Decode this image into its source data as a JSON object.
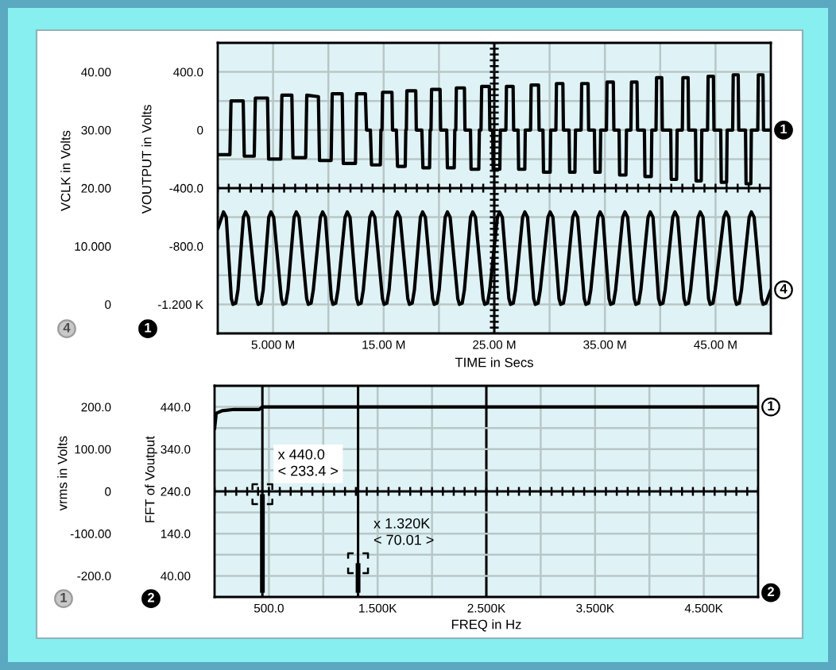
{
  "chart_data": [
    {
      "type": "line",
      "xlabel": "TIME in Secs",
      "ylabel": "VOUTPUT in Volts",
      "y2label": "VCLK in Volts",
      "xlim": [
        0,
        50
      ],
      "xticks": [
        {
          "value": 5,
          "label": "5.000 M"
        },
        {
          "value": 10,
          "label": null
        },
        {
          "value": 15,
          "label": "15.00 M"
        },
        {
          "value": 20,
          "label": null
        },
        {
          "value": 25,
          "label": "25.00 M"
        },
        {
          "value": 30,
          "label": null
        },
        {
          "value": 35,
          "label": "35.00 M"
        },
        {
          "value": 40,
          "label": null
        },
        {
          "value": 45,
          "label": "45.00 M"
        }
      ],
      "ylim": [
        -1400,
        600
      ],
      "yticks": [
        {
          "value": -1200,
          "label": "-1.200 K"
        },
        {
          "value": -1000,
          "label": null
        },
        {
          "value": -800,
          "label": "-800.0"
        },
        {
          "value": -600,
          "label": null
        },
        {
          "value": -400,
          "label": "-400.0"
        },
        {
          "value": -200,
          "label": null
        },
        0,
        {
          "value": 200,
          "label": null
        },
        {
          "value": 400,
          "label": "400.0"
        }
      ],
      "y2lim": [
        -5,
        45
      ],
      "y2ticks": [
        0,
        {
          "value": 10,
          "label": "10.000"
        },
        {
          "value": 20,
          "label": "20.00"
        },
        {
          "value": 30,
          "label": "30.00"
        },
        {
          "value": 40,
          "label": "40.00"
        }
      ],
      "grid": true,
      "series": [
        {
          "name": "1",
          "color": "#000000",
          "axis": "y",
          "x": [
            0,
            1.1,
            1.2,
            2.3,
            2.4,
            3.3,
            3.4,
            4.5,
            4.6,
            5.7,
            5.8,
            6.7,
            6.8,
            7.95,
            8.05,
            9.1,
            9.2,
            10.25,
            10.35,
            11.25,
            11.35,
            12.45,
            12.55,
            13.35,
            13.45,
            13.8,
            13.9,
            14.7,
            14.75,
            14.85,
            14.9,
            15.75,
            15.8,
            16.15,
            16.25,
            16.95,
            17.0,
            17.05,
            17.1,
            17.9,
            17.95,
            18.45,
            18.55,
            19.15,
            19.2,
            19.28,
            19.33,
            20.1,
            20.15,
            20.7,
            20.76,
            21.38,
            21.43,
            21.52,
            21.57,
            22.3,
            22.35,
            22.85,
            22.9,
            23.6,
            23.65,
            23.8,
            23.86,
            24.55,
            24.6,
            24.85,
            24.9,
            25.5,
            25.55,
            26.05,
            26.1,
            26.7,
            26.75,
            27.15,
            27.2,
            27.76,
            27.8,
            28.28,
            28.33,
            29.0,
            29.05,
            29.4,
            29.45,
            30.05,
            30.1,
            30.57,
            30.62,
            31.2,
            31.25,
            31.76,
            31.81,
            32.29,
            32.34,
            32.85,
            32.9,
            33.48,
            33.53,
            34.05,
            34.1,
            34.57,
            34.62,
            35.14,
            35.19,
            35.76,
            35.81,
            36.28,
            36.33,
            36.9,
            36.95,
            37.35,
            37.4,
            37.9,
            37.95,
            38.57,
            38.62,
            39.19,
            39.24,
            39.62,
            39.67,
            40.14,
            40.19,
            40.95,
            41.0,
            41.48,
            41.53,
            42.0,
            42.05,
            42.52,
            42.57,
            43.19,
            43.24,
            43.71,
            43.76,
            44.28,
            44.33,
            44.81,
            44.86,
            45.47,
            45.52,
            46.0,
            46.05,
            46.55,
            46.6,
            47.05,
            47.1,
            47.71,
            47.76,
            48.19,
            48.24,
            48.82,
            48.87,
            49.29,
            49.34,
            50
          ],
          "values": [
            -170,
            -170,
            200,
            200,
            -180,
            -180,
            220,
            220,
            -200,
            -200,
            240,
            240,
            -190,
            -190,
            240,
            230,
            -210,
            -210,
            250,
            250,
            -230,
            -230,
            250,
            250,
            0,
            0,
            -240,
            -240,
            0,
            0,
            260,
            260,
            0,
            0,
            -250,
            -250,
            0,
            0,
            270,
            270,
            0,
            0,
            -260,
            -260,
            0,
            0,
            280,
            280,
            0,
            0,
            -260,
            -260,
            0,
            0,
            290,
            290,
            0,
            0,
            -270,
            -270,
            0,
            0,
            300,
            300,
            0,
            0,
            -270,
            -270,
            0,
            0,
            300,
            300,
            0,
            0,
            -270,
            -270,
            0,
            0,
            310,
            310,
            0,
            0,
            -290,
            -290,
            0,
            0,
            320,
            320,
            0,
            0,
            -290,
            -290,
            0,
            0,
            320,
            320,
            0,
            0,
            -290,
            -290,
            0,
            0,
            330,
            330,
            0,
            0,
            -310,
            -310,
            0,
            0,
            330,
            330,
            0,
            0,
            -320,
            -320,
            0,
            0,
            360,
            360,
            0,
            0,
            -340,
            -340,
            0,
            0,
            360,
            360,
            0,
            0,
            -350,
            -350,
            0,
            0,
            370,
            370,
            0,
            0,
            -360,
            -360,
            0,
            0,
            380,
            380,
            0,
            0,
            -370,
            -370,
            0,
            0,
            380,
            380,
            0,
            0
          ]
        },
        {
          "name": "4",
          "color": "#000000",
          "axis": "y2",
          "x": [
            0,
            0.52,
            0.77,
            1.23,
            1.38,
            1.63,
            1.83,
            2.32,
            2.52,
            2.77,
            3.51,
            3.66,
            3.91,
            4.11,
            4.61,
            4.81,
            5.06,
            5.75,
            5.9,
            6.15,
            6.35,
            6.9,
            7.1,
            7.35,
            8.04,
            8.19,
            8.44,
            8.64,
            9.28,
            9.48,
            9.73,
            10.27,
            10.42,
            10.67,
            10.87,
            11.51,
            11.71,
            11.96,
            12.56,
            12.71,
            12.96,
            13.16,
            13.75,
            13.95,
            14.2,
            14.89,
            15.04,
            15.29,
            15.49,
            16.04,
            16.24,
            16.49,
            17.18,
            17.33,
            17.58,
            17.78,
            18.32,
            18.52,
            18.77,
            19.42,
            19.57,
            19.82,
            20.02,
            20.56,
            20.76,
            21.01,
            21.7,
            21.85,
            22.1,
            22.3,
            22.85,
            23.05,
            23.3,
            23.99,
            24.14,
            24.39,
            24.59,
            25.28,
            25.48,
            25.73,
            26.32,
            26.47,
            26.72,
            26.92,
            27.56,
            27.76,
            28.01,
            28.56,
            28.71,
            28.96,
            29.16,
            29.85,
            30.05,
            30.3,
            30.85,
            31.0,
            31.25,
            31.45,
            32.09,
            32.29,
            32.54,
            33.13,
            33.28,
            33.53,
            33.73,
            34.37,
            34.57,
            34.82,
            35.37,
            35.52,
            35.77,
            35.97,
            36.61,
            36.81,
            37.06,
            37.65,
            37.8,
            38.05,
            38.25,
            38.9,
            39.1,
            39.35,
            39.85,
            40.0,
            40.25,
            40.45,
            41.13,
            41.33,
            41.58,
            42.15,
            42.3,
            42.55,
            42.75,
            43.42,
            43.62,
            43.87,
            44.37,
            44.52,
            44.77,
            44.97,
            45.75,
            45.95,
            46.2,
            46.75,
            46.9,
            47.15,
            47.35,
            48.04,
            48.24,
            48.49,
            49.15,
            49.3,
            49.55,
            50
          ],
          "values": [
            13.0,
            15.9,
            15.0,
            1.0,
            0,
            0.2,
            2.5,
            15.0,
            15.9,
            15.0,
            1.0,
            0,
            0.2,
            2.5,
            15.0,
            15.9,
            15.0,
            1.0,
            0,
            0.2,
            2.5,
            15.0,
            15.9,
            15.0,
            1.0,
            0,
            0.2,
            2.5,
            15.0,
            15.9,
            15.0,
            1.0,
            0,
            0.2,
            2.5,
            15.0,
            15.9,
            15.0,
            1.0,
            0,
            0.2,
            2.5,
            15.0,
            15.9,
            15.0,
            1.0,
            0,
            0.2,
            2.5,
            15.0,
            15.9,
            15.0,
            1.0,
            0,
            0.2,
            2.5,
            15.0,
            15.9,
            15.0,
            1.0,
            0,
            0.2,
            2.5,
            15.0,
            15.9,
            15.0,
            1.0,
            0,
            0.2,
            2.5,
            15.0,
            15.9,
            15.0,
            1.0,
            0,
            0.2,
            2.5,
            15.0,
            15.9,
            15.0,
            1.0,
            0,
            0.2,
            2.5,
            15.0,
            15.9,
            15.0,
            1.0,
            0,
            0.2,
            2.5,
            15.0,
            15.9,
            15.0,
            1.0,
            0,
            0.2,
            2.5,
            15.0,
            15.9,
            15.0,
            1.0,
            0,
            0.2,
            2.5,
            15.0,
            15.9,
            15.0,
            1.0,
            0,
            0.2,
            2.5,
            15.0,
            15.9,
            15.0,
            1.0,
            0,
            0.2,
            2.5,
            15.0,
            15.9,
            15.0,
            1.0,
            0,
            0.2,
            2.5,
            15.0,
            15.9,
            15.0,
            1.0,
            0,
            0.2,
            2.5,
            15.0,
            15.9,
            15.0,
            1.0,
            0,
            0.2,
            2.5,
            15.0,
            15.9,
            15.0,
            1.0,
            0,
            0.2,
            2.5,
            15.0,
            15.9,
            15.0,
            1.0,
            0,
            0.2,
            2.5
          ]
        }
      ]
    },
    {
      "type": "line",
      "xlabel": "FREQ in Hz",
      "ylabel": "FFT of Voutput",
      "y2label": "vrms in Volts",
      "xlim": [
        0,
        5000
      ],
      "xticks": [
        {
          "value": 500,
          "label": "500.0"
        },
        {
          "value": 1000,
          "label": null
        },
        {
          "value": 1500,
          "label": "1.500K"
        },
        {
          "value": 2000,
          "label": null
        },
        {
          "value": 2500,
          "label": "2.500K"
        },
        {
          "value": 3000,
          "label": null
        },
        {
          "value": 3500,
          "label": "3.500K"
        },
        {
          "value": 4000,
          "label": null
        },
        {
          "value": 4500,
          "label": "4.500K"
        }
      ],
      "ylim": [
        -10,
        490
      ],
      "yticks": [
        {
          "value": 40,
          "label": "40.00"
        },
        {
          "value": 90,
          "label": null
        },
        {
          "value": 140,
          "label": "140.0"
        },
        {
          "value": 190,
          "label": null
        },
        {
          "value": 240,
          "label": "240.0"
        },
        {
          "value": 290,
          "label": null
        },
        {
          "value": 340,
          "label": "340.0"
        },
        {
          "value": 390,
          "label": null
        },
        {
          "value": 440,
          "label": "440.0"
        }
      ],
      "y2lim": [
        -250,
        250
      ],
      "y2ticks": [
        {
          "value": -200,
          "label": "-200.0"
        },
        {
          "value": -100,
          "label": "-100.00"
        },
        0,
        {
          "value": 100,
          "label": "100.00"
        },
        {
          "value": 200,
          "label": "200.0"
        }
      ],
      "grid": true,
      "ref_lines": [
        {
          "axis": "x",
          "value": 440,
          "color": "#000000"
        },
        {
          "axis": "x",
          "value": 1320,
          "color": "#000000"
        }
      ],
      "annotations": [
        {
          "text": "x 440.0\n< 233.4 >",
          "x": 440,
          "y": 233.4
        },
        {
          "text": "x 1.320K\n< 70.01 >",
          "x": 1320,
          "y": 70.01
        }
      ],
      "series": [
        {
          "name": "1",
          "color": "#000000",
          "axis": "y2",
          "x": [
            0,
            15,
            70,
            180,
            410,
            440,
            5000
          ],
          "values": [
            148,
            185,
            191,
            194,
            194,
            200,
            200
          ]
        },
        {
          "name": "2",
          "color": "#000000",
          "axis": "y",
          "type": "bar",
          "x": [
            440,
            1320
          ],
          "values": [
            233.4,
            70.01
          ]
        }
      ]
    }
  ]
}
